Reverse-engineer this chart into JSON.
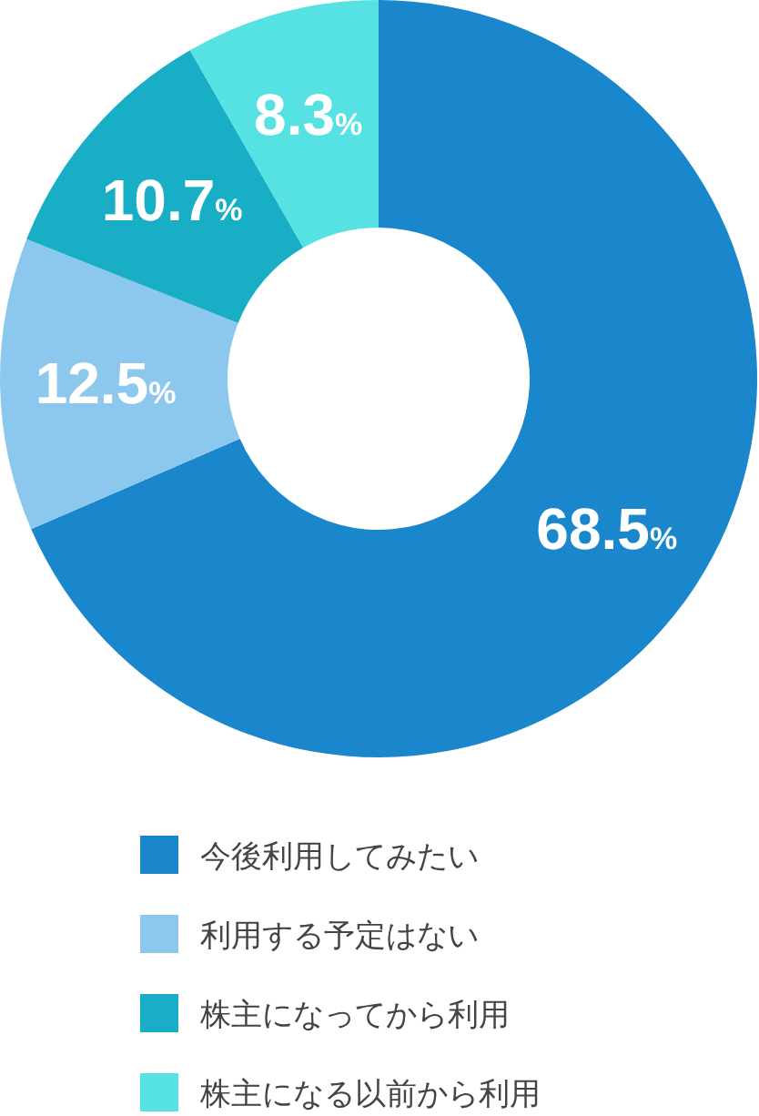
{
  "chart_data": {
    "type": "donut",
    "legend": "bottom",
    "categories": [
      "今後利用してみたい",
      "利用する予定はない",
      "株主になってから利用",
      "株主になる以前から利用"
    ],
    "values": [
      68.5,
      12.5,
      10.7,
      8.3
    ],
    "value_labels": [
      "68.5%",
      "12.5%",
      "10.7%",
      "8.3%"
    ],
    "colors": [
      "#1a87cc",
      "#8cc8ee",
      "#18aec6",
      "#56e2e2"
    ]
  }
}
